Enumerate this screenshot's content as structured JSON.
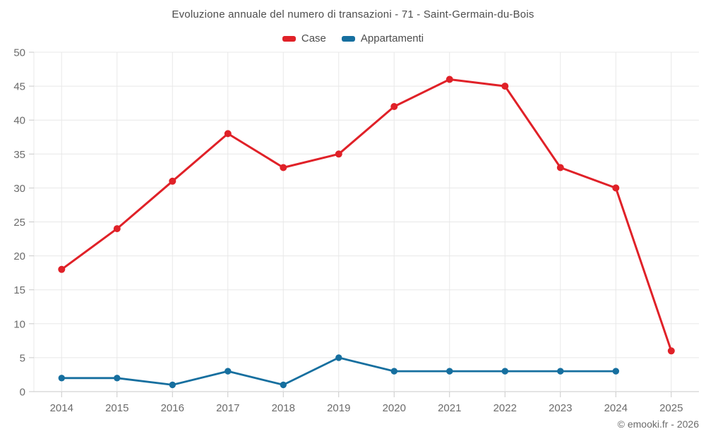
{
  "chart_data": {
    "type": "line",
    "title": "Evoluzione annuale del numero di transazioni - 71 - Saint-Germain-du-Bois",
    "categories": [
      "2014",
      "2015",
      "2016",
      "2017",
      "2018",
      "2019",
      "2020",
      "2021",
      "2022",
      "2023",
      "2024",
      "2025"
    ],
    "series": [
      {
        "name": "Case",
        "color": "#e02128",
        "values": [
          18,
          24,
          31,
          38,
          33,
          35,
          42,
          46,
          45,
          33,
          30,
          6
        ]
      },
      {
        "name": "Appartamenti",
        "color": "#166f9f",
        "values": [
          2,
          2,
          1,
          3,
          1,
          5,
          3,
          3,
          3,
          3,
          3,
          null
        ]
      }
    ],
    "xlabel": "",
    "ylabel": "",
    "ylim": [
      0,
      50
    ],
    "ytick_step": 5,
    "grid": true,
    "legend_position": "top"
  },
  "footer": {
    "credit": "© emooki.fr - 2026"
  }
}
